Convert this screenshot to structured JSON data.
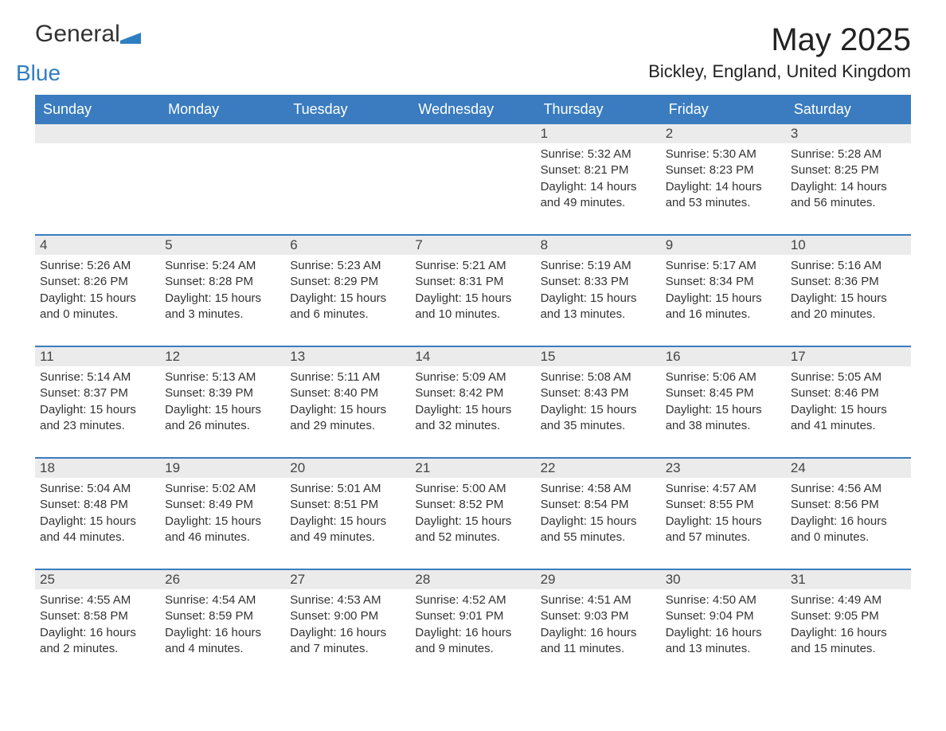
{
  "logo": {
    "line1": "General",
    "line2": "Blue"
  },
  "title": "May 2025",
  "location": "Bickley, England, United Kingdom",
  "header_bg": "#3a7cbf",
  "header_fg": "#ffffff",
  "daynum_bg": "#ebebeb",
  "divider_color": "#3a7cbf",
  "text_color": "#333333",
  "weekdays": [
    "Sunday",
    "Monday",
    "Tuesday",
    "Wednesday",
    "Thursday",
    "Friday",
    "Saturday"
  ],
  "weeks": [
    [
      {
        "n": "",
        "lines": [
          "",
          "",
          "",
          ""
        ]
      },
      {
        "n": "",
        "lines": [
          "",
          "",
          "",
          ""
        ]
      },
      {
        "n": "",
        "lines": [
          "",
          "",
          "",
          ""
        ]
      },
      {
        "n": "",
        "lines": [
          "",
          "",
          "",
          ""
        ]
      },
      {
        "n": "1",
        "lines": [
          "Sunrise: 5:32 AM",
          "Sunset: 8:21 PM",
          "Daylight: 14 hours",
          "and 49 minutes."
        ]
      },
      {
        "n": "2",
        "lines": [
          "Sunrise: 5:30 AM",
          "Sunset: 8:23 PM",
          "Daylight: 14 hours",
          "and 53 minutes."
        ]
      },
      {
        "n": "3",
        "lines": [
          "Sunrise: 5:28 AM",
          "Sunset: 8:25 PM",
          "Daylight: 14 hours",
          "and 56 minutes."
        ]
      }
    ],
    [
      {
        "n": "4",
        "lines": [
          "Sunrise: 5:26 AM",
          "Sunset: 8:26 PM",
          "Daylight: 15 hours",
          "and 0 minutes."
        ]
      },
      {
        "n": "5",
        "lines": [
          "Sunrise: 5:24 AM",
          "Sunset: 8:28 PM",
          "Daylight: 15 hours",
          "and 3 minutes."
        ]
      },
      {
        "n": "6",
        "lines": [
          "Sunrise: 5:23 AM",
          "Sunset: 8:29 PM",
          "Daylight: 15 hours",
          "and 6 minutes."
        ]
      },
      {
        "n": "7",
        "lines": [
          "Sunrise: 5:21 AM",
          "Sunset: 8:31 PM",
          "Daylight: 15 hours",
          "and 10 minutes."
        ]
      },
      {
        "n": "8",
        "lines": [
          "Sunrise: 5:19 AM",
          "Sunset: 8:33 PM",
          "Daylight: 15 hours",
          "and 13 minutes."
        ]
      },
      {
        "n": "9",
        "lines": [
          "Sunrise: 5:17 AM",
          "Sunset: 8:34 PM",
          "Daylight: 15 hours",
          "and 16 minutes."
        ]
      },
      {
        "n": "10",
        "lines": [
          "Sunrise: 5:16 AM",
          "Sunset: 8:36 PM",
          "Daylight: 15 hours",
          "and 20 minutes."
        ]
      }
    ],
    [
      {
        "n": "11",
        "lines": [
          "Sunrise: 5:14 AM",
          "Sunset: 8:37 PM",
          "Daylight: 15 hours",
          "and 23 minutes."
        ]
      },
      {
        "n": "12",
        "lines": [
          "Sunrise: 5:13 AM",
          "Sunset: 8:39 PM",
          "Daylight: 15 hours",
          "and 26 minutes."
        ]
      },
      {
        "n": "13",
        "lines": [
          "Sunrise: 5:11 AM",
          "Sunset: 8:40 PM",
          "Daylight: 15 hours",
          "and 29 minutes."
        ]
      },
      {
        "n": "14",
        "lines": [
          "Sunrise: 5:09 AM",
          "Sunset: 8:42 PM",
          "Daylight: 15 hours",
          "and 32 minutes."
        ]
      },
      {
        "n": "15",
        "lines": [
          "Sunrise: 5:08 AM",
          "Sunset: 8:43 PM",
          "Daylight: 15 hours",
          "and 35 minutes."
        ]
      },
      {
        "n": "16",
        "lines": [
          "Sunrise: 5:06 AM",
          "Sunset: 8:45 PM",
          "Daylight: 15 hours",
          "and 38 minutes."
        ]
      },
      {
        "n": "17",
        "lines": [
          "Sunrise: 5:05 AM",
          "Sunset: 8:46 PM",
          "Daylight: 15 hours",
          "and 41 minutes."
        ]
      }
    ],
    [
      {
        "n": "18",
        "lines": [
          "Sunrise: 5:04 AM",
          "Sunset: 8:48 PM",
          "Daylight: 15 hours",
          "and 44 minutes."
        ]
      },
      {
        "n": "19",
        "lines": [
          "Sunrise: 5:02 AM",
          "Sunset: 8:49 PM",
          "Daylight: 15 hours",
          "and 46 minutes."
        ]
      },
      {
        "n": "20",
        "lines": [
          "Sunrise: 5:01 AM",
          "Sunset: 8:51 PM",
          "Daylight: 15 hours",
          "and 49 minutes."
        ]
      },
      {
        "n": "21",
        "lines": [
          "Sunrise: 5:00 AM",
          "Sunset: 8:52 PM",
          "Daylight: 15 hours",
          "and 52 minutes."
        ]
      },
      {
        "n": "22",
        "lines": [
          "Sunrise: 4:58 AM",
          "Sunset: 8:54 PM",
          "Daylight: 15 hours",
          "and 55 minutes."
        ]
      },
      {
        "n": "23",
        "lines": [
          "Sunrise: 4:57 AM",
          "Sunset: 8:55 PM",
          "Daylight: 15 hours",
          "and 57 minutes."
        ]
      },
      {
        "n": "24",
        "lines": [
          "Sunrise: 4:56 AM",
          "Sunset: 8:56 PM",
          "Daylight: 16 hours",
          "and 0 minutes."
        ]
      }
    ],
    [
      {
        "n": "25",
        "lines": [
          "Sunrise: 4:55 AM",
          "Sunset: 8:58 PM",
          "Daylight: 16 hours",
          "and 2 minutes."
        ]
      },
      {
        "n": "26",
        "lines": [
          "Sunrise: 4:54 AM",
          "Sunset: 8:59 PM",
          "Daylight: 16 hours",
          "and 4 minutes."
        ]
      },
      {
        "n": "27",
        "lines": [
          "Sunrise: 4:53 AM",
          "Sunset: 9:00 PM",
          "Daylight: 16 hours",
          "and 7 minutes."
        ]
      },
      {
        "n": "28",
        "lines": [
          "Sunrise: 4:52 AM",
          "Sunset: 9:01 PM",
          "Daylight: 16 hours",
          "and 9 minutes."
        ]
      },
      {
        "n": "29",
        "lines": [
          "Sunrise: 4:51 AM",
          "Sunset: 9:03 PM",
          "Daylight: 16 hours",
          "and 11 minutes."
        ]
      },
      {
        "n": "30",
        "lines": [
          "Sunrise: 4:50 AM",
          "Sunset: 9:04 PM",
          "Daylight: 16 hours",
          "and 13 minutes."
        ]
      },
      {
        "n": "31",
        "lines": [
          "Sunrise: 4:49 AM",
          "Sunset: 9:05 PM",
          "Daylight: 16 hours",
          "and 15 minutes."
        ]
      }
    ]
  ]
}
